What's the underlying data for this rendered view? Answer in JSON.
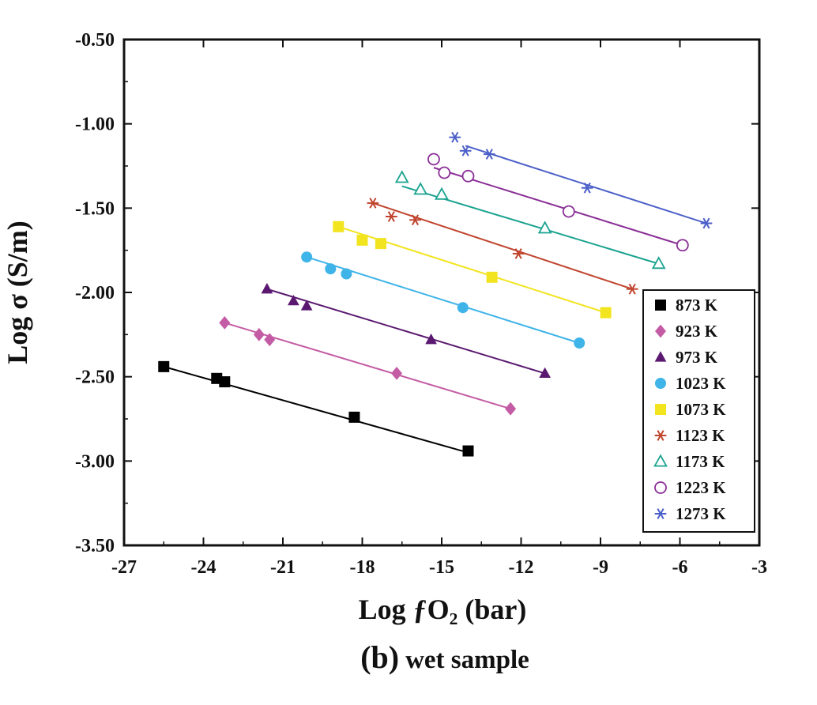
{
  "chart_data": {
    "type": "scatter",
    "xlabel": "Log ƒO₂ (bar)",
    "ylabel": "Log σ (S/m)",
    "caption_letter": "(b)",
    "caption_text": "wet sample",
    "xlim": [
      -27,
      -3
    ],
    "ylim": [
      -3.5,
      -0.5
    ],
    "x_ticks": [
      -27,
      -24,
      -21,
      -18,
      -15,
      -12,
      -9,
      -6,
      -3
    ],
    "x_tick_labels": [
      "-27",
      "-24",
      "-21",
      "-18",
      "-15",
      "-12",
      "-9",
      "-6",
      "-3"
    ],
    "y_ticks": [
      -0.5,
      -1.0,
      -1.5,
      -2.0,
      -2.5,
      -3.0,
      -3.5
    ],
    "y_tick_labels": [
      "-0.50",
      "-1.00",
      "-1.50",
      "-2.00",
      "-2.50",
      "-3.00",
      "-3.50"
    ],
    "grid": false,
    "legend_position": "bottom-right",
    "series": [
      {
        "name": "873 K",
        "marker": "square-filled",
        "color": "#000000",
        "x": [
          -25.5,
          -23.5,
          -23.2,
          -18.3,
          -14.0
        ],
        "y": [
          -2.44,
          -2.51,
          -2.53,
          -2.74,
          -2.94
        ],
        "fit": [
          [
            -25.5,
            -2.44
          ],
          [
            -14.0,
            -2.95
          ]
        ]
      },
      {
        "name": "923 K",
        "marker": "diamond-filled",
        "color": "#c45ca5",
        "x": [
          -23.2,
          -21.9,
          -21.5,
          -16.7,
          -12.4
        ],
        "y": [
          -2.18,
          -2.25,
          -2.28,
          -2.48,
          -2.69
        ],
        "fit": [
          [
            -23.2,
            -2.18
          ],
          [
            -12.4,
            -2.69
          ]
        ]
      },
      {
        "name": "973 K",
        "marker": "triangle-filled",
        "color": "#5a1870",
        "x": [
          -21.6,
          -20.6,
          -20.1,
          -15.4,
          -11.1
        ],
        "y": [
          -1.98,
          -2.05,
          -2.08,
          -2.28,
          -2.48
        ],
        "fit": [
          [
            -21.6,
            -1.98
          ],
          [
            -11.1,
            -2.48
          ]
        ]
      },
      {
        "name": "1023 K",
        "marker": "circle-filled",
        "color": "#3fb4e8",
        "x": [
          -20.1,
          -19.2,
          -18.6,
          -14.2,
          -9.8
        ],
        "y": [
          -1.79,
          -1.86,
          -1.89,
          -2.09,
          -2.3
        ],
        "fit": [
          [
            -20.1,
            -1.79
          ],
          [
            -9.8,
            -2.3
          ]
        ]
      },
      {
        "name": "1073 K",
        "marker": "square-filled",
        "color": "#f2e41e",
        "x": [
          -18.9,
          -18.0,
          -17.3,
          -13.1,
          -8.8
        ],
        "y": [
          -1.61,
          -1.69,
          -1.71,
          -1.91,
          -2.12
        ],
        "fit": [
          [
            -18.9,
            -1.61
          ],
          [
            -8.8,
            -2.12
          ]
        ]
      },
      {
        "name": "1123 K",
        "marker": "asterisk",
        "color": "#c0452e",
        "x": [
          -17.6,
          -16.9,
          -16.0,
          -12.1,
          -7.8
        ],
        "y": [
          -1.47,
          -1.55,
          -1.57,
          -1.77,
          -1.98
        ],
        "fit": [
          [
            -17.6,
            -1.47
          ],
          [
            -7.8,
            -1.98
          ]
        ]
      },
      {
        "name": "1173 K",
        "marker": "triangle-open",
        "color": "#1aa38f",
        "x": [
          -16.5,
          -15.8,
          -15.0,
          -11.1,
          -6.8
        ],
        "y": [
          -1.32,
          -1.39,
          -1.42,
          -1.62,
          -1.83
        ],
        "fit": [
          [
            -16.5,
            -1.37
          ],
          [
            -6.8,
            -1.83
          ]
        ]
      },
      {
        "name": "1223 K",
        "marker": "circle-open",
        "color": "#8a2f96",
        "x": [
          -15.3,
          -14.9,
          -14.0,
          -10.2,
          -5.9
        ],
        "y": [
          -1.21,
          -1.29,
          -1.31,
          -1.52,
          -1.72
        ],
        "fit": [
          [
            -15.3,
            -1.26
          ],
          [
            -5.9,
            -1.72
          ]
        ]
      },
      {
        "name": "1273 K",
        "marker": "asterisk",
        "color": "#4a5fc8",
        "x": [
          -14.5,
          -14.1,
          -13.2,
          -9.5,
          -5.0
        ],
        "y": [
          -1.08,
          -1.16,
          -1.18,
          -1.38,
          -1.59
        ],
        "fit": [
          [
            -14.1,
            -1.13
          ],
          [
            -5.0,
            -1.59
          ]
        ]
      }
    ]
  }
}
